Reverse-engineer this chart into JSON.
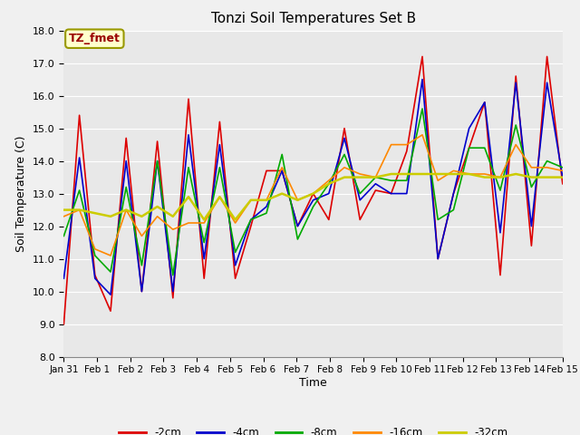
{
  "title": "Tonzi Soil Temperatures Set B",
  "xlabel": "Time",
  "ylabel": "Soil Temperature (C)",
  "ylim": [
    8.0,
    18.0
  ],
  "yticks": [
    8.0,
    9.0,
    10.0,
    11.0,
    12.0,
    13.0,
    14.0,
    15.0,
    16.0,
    17.0,
    18.0
  ],
  "xtick_labels": [
    "Jan 31",
    "Feb 1",
    "Feb 2",
    "Feb 3",
    "Feb 4",
    "Feb 5",
    "Feb 6",
    "Feb 7",
    "Feb 8",
    "Feb 9",
    "Feb 10",
    "Feb 11",
    "Feb 12",
    "Feb 13",
    "Feb 14",
    "Feb 15"
  ],
  "bg_color": "#e8e8e8",
  "fig_bg_color": "#f0f0f0",
  "grid_color": "#ffffff",
  "annotation_text": "TZ_fmet",
  "annotation_color": "#990000",
  "annotation_bg": "#ffffcc",
  "annotation_border": "#999900",
  "series": {
    "neg2cm": {
      "label": "-2cm",
      "color": "#dd0000",
      "lw": 1.2
    },
    "neg4cm": {
      "label": "-4cm",
      "color": "#0000cc",
      "lw": 1.2
    },
    "neg8cm": {
      "label": "-8cm",
      "color": "#00aa00",
      "lw": 1.2
    },
    "neg16cm": {
      "label": "-16cm",
      "color": "#ff8800",
      "lw": 1.2
    },
    "neg32cm": {
      "label": "-32cm",
      "color": "#cccc00",
      "lw": 1.8
    }
  },
  "neg2cm_y": [
    9.0,
    15.4,
    10.5,
    9.4,
    14.7,
    10.0,
    14.6,
    9.8,
    15.9,
    10.4,
    15.2,
    10.4,
    12.0,
    13.7,
    13.7,
    12.0,
    13.0,
    12.2,
    15.0,
    12.2,
    13.1,
    13.0,
    14.3,
    17.2,
    11.0,
    13.0,
    14.4,
    15.8,
    10.5,
    16.6,
    11.4,
    17.2,
    13.3
  ],
  "neg4cm_y": [
    10.4,
    14.1,
    10.4,
    9.9,
    14.0,
    10.0,
    14.0,
    10.0,
    14.8,
    11.0,
    14.5,
    10.8,
    12.2,
    12.6,
    13.7,
    12.0,
    12.8,
    13.0,
    14.7,
    12.8,
    13.3,
    13.0,
    13.0,
    16.5,
    11.0,
    13.0,
    15.0,
    15.8,
    11.8,
    16.4,
    12.0,
    16.4,
    13.5
  ],
  "neg8cm_y": [
    11.7,
    13.1,
    11.1,
    10.6,
    13.2,
    10.8,
    14.0,
    10.5,
    13.8,
    11.5,
    13.8,
    11.2,
    12.2,
    12.4,
    14.2,
    11.6,
    12.6,
    13.3,
    14.2,
    13.0,
    13.5,
    13.4,
    13.4,
    15.6,
    12.2,
    12.5,
    14.4,
    14.4,
    13.1,
    15.1,
    13.2,
    14.0,
    13.8
  ],
  "neg16cm_y": [
    12.3,
    12.5,
    11.3,
    11.1,
    12.5,
    11.7,
    12.3,
    11.9,
    12.1,
    12.1,
    12.9,
    12.1,
    12.8,
    12.8,
    13.8,
    12.8,
    13.0,
    13.4,
    13.8,
    13.6,
    13.5,
    14.5,
    14.5,
    14.8,
    13.4,
    13.7,
    13.6,
    13.6,
    13.5,
    14.5,
    13.8,
    13.8,
    13.7
  ],
  "neg32cm_y": [
    12.5,
    12.5,
    12.4,
    12.3,
    12.5,
    12.3,
    12.6,
    12.3,
    12.9,
    12.2,
    12.9,
    12.2,
    12.8,
    12.8,
    13.0,
    12.8,
    13.0,
    13.3,
    13.5,
    13.5,
    13.5,
    13.6,
    13.6,
    13.6,
    13.6,
    13.6,
    13.6,
    13.5,
    13.5,
    13.6,
    13.5,
    13.5,
    13.5
  ]
}
